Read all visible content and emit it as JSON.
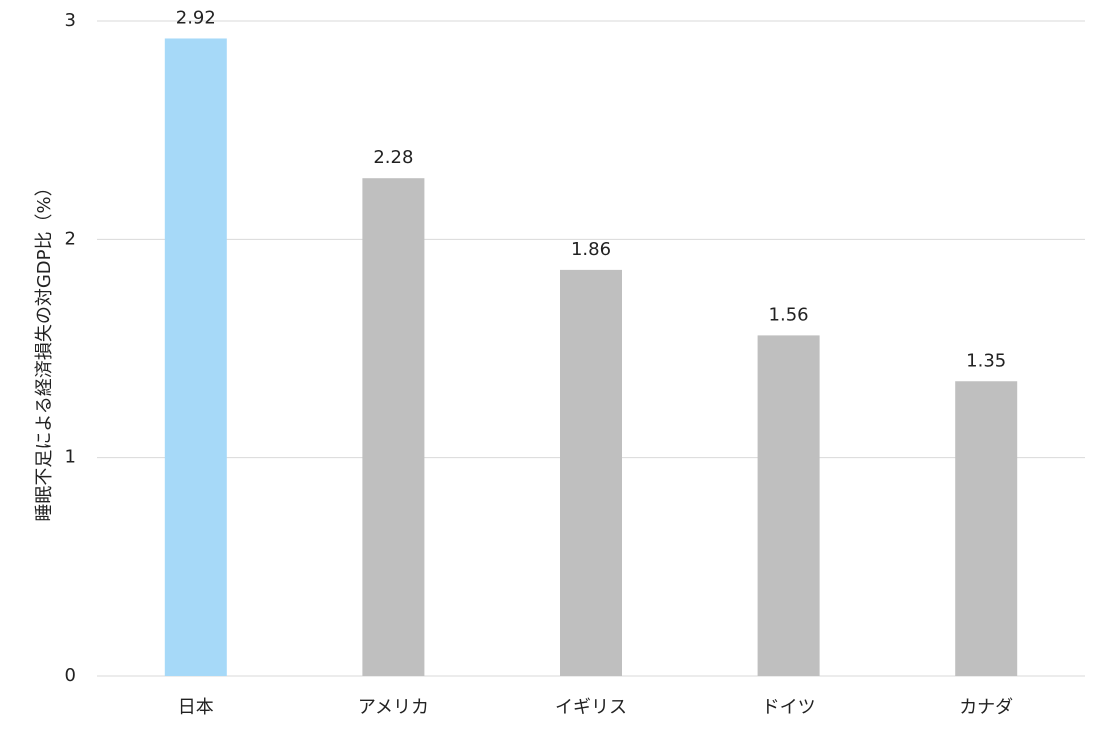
{
  "chart_data": {
    "type": "bar",
    "y_label": "睡眠不足による経済損失の対GDP比（%）",
    "categories": [
      "日本",
      "アメリカ",
      "イギリス",
      "ドイツ",
      "カナダ"
    ],
    "values": [
      2.92,
      2.28,
      1.86,
      1.56,
      1.35
    ],
    "colors": [
      "#a6d9f8",
      "#bfbfbf",
      "#bfbfbf",
      "#bfbfbf",
      "#bfbfbf"
    ],
    "ylim": [
      0,
      3
    ],
    "yticks": [
      0,
      1,
      2,
      3
    ],
    "grid": true
  }
}
